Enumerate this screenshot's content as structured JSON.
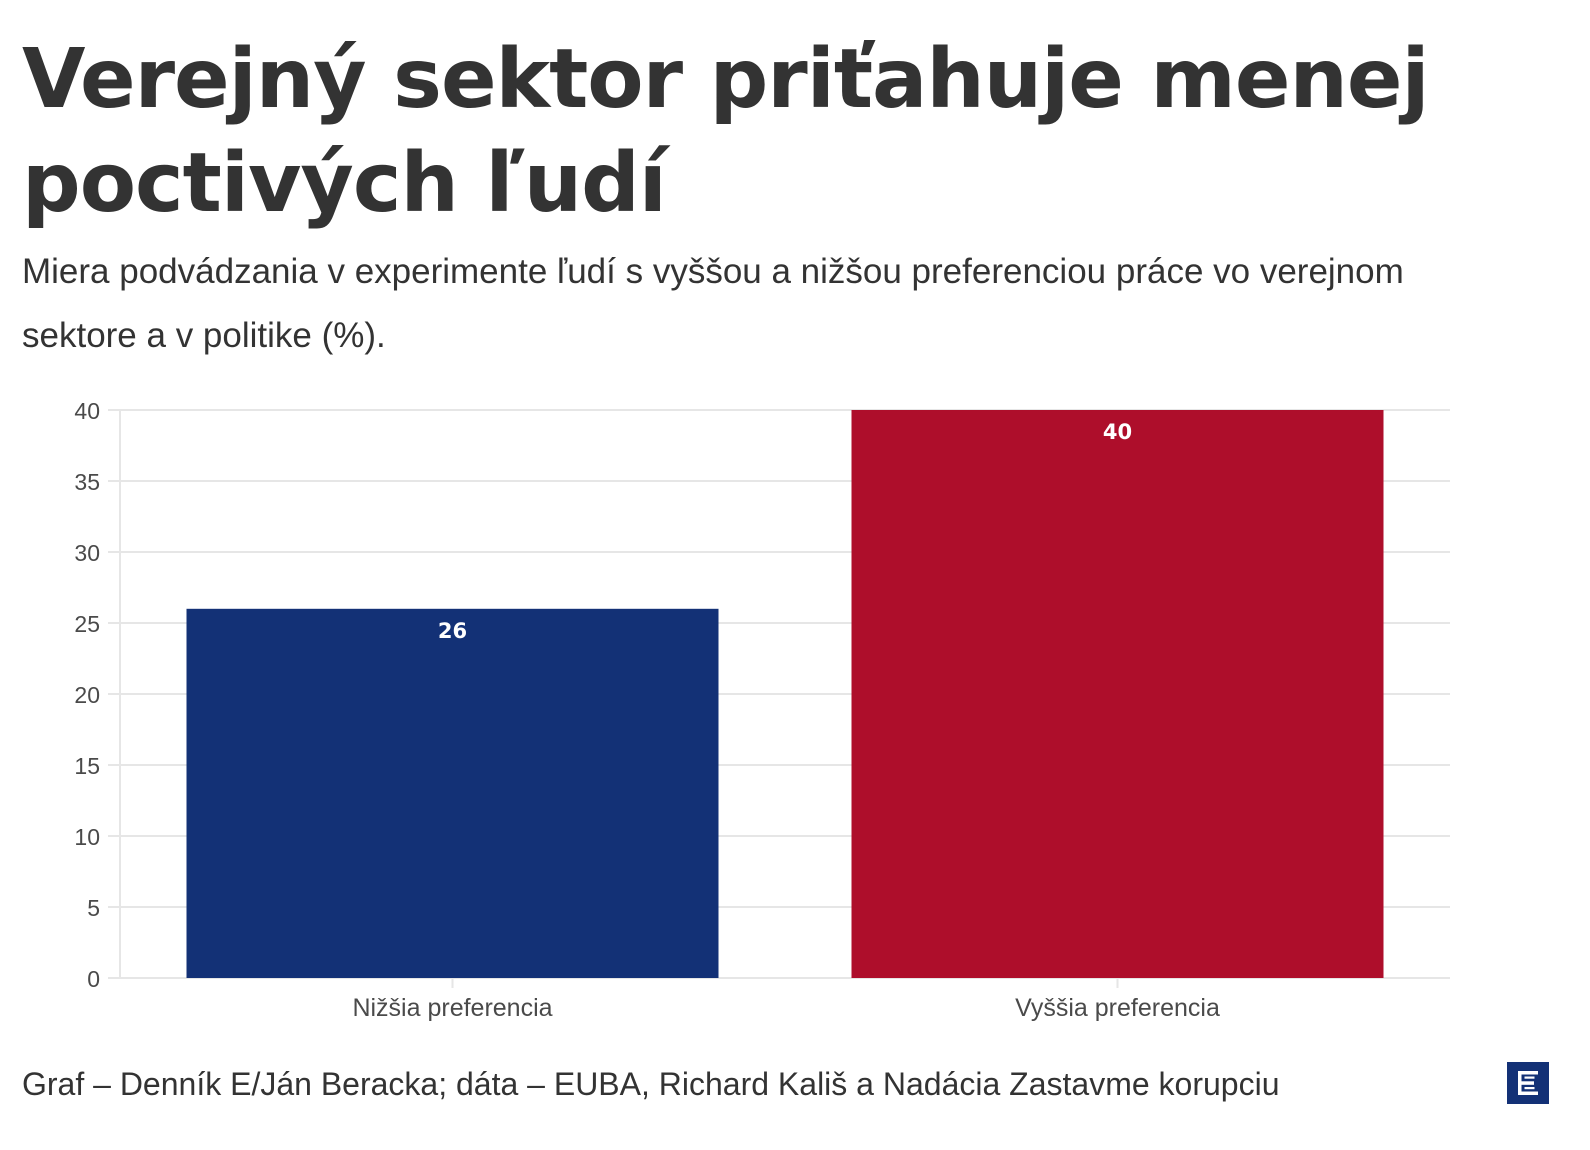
{
  "header": {
    "title": "Verejný sektor priťahuje menej poctivých ľudí",
    "subtitle": "Miera podvádzania v experimente ľudí s vyššou a nižšou preferenciou práce vo verejnom sektore a v politike (%)."
  },
  "chart_data": {
    "type": "bar",
    "categories": [
      "Nižšia preferencia",
      "Vyššia preferencia"
    ],
    "values": [
      26,
      40
    ],
    "colors": [
      "#133176",
      "#ae0e2b"
    ],
    "ylim": [
      0,
      40
    ],
    "yticks": [
      0,
      5,
      10,
      15,
      20,
      25,
      30,
      35,
      40
    ],
    "data_labels": [
      "26",
      "40"
    ],
    "grid": true,
    "xlabel": "",
    "ylabel": ""
  },
  "footer": {
    "source": "Graf – Denník E/Ján Beracka; dáta – EUBA, Richard Kališ a Nadácia Zastavme korupciu"
  },
  "logo": {
    "icon": "denik-e-logo-icon",
    "color": "#133176"
  }
}
